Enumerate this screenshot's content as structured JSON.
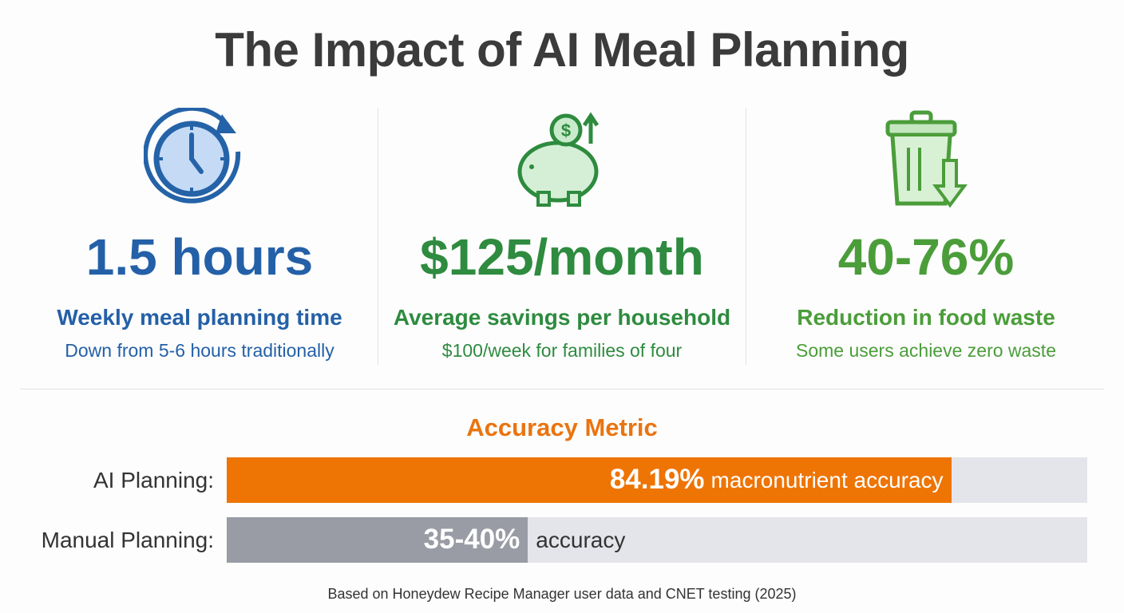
{
  "title": "The Impact of AI Meal Planning",
  "stats": [
    {
      "icon": "clock-refresh-icon",
      "value": "1.5 hours",
      "label": "Weekly meal planning time",
      "detail": "Down from 5-6 hours traditionally",
      "color": "#2460a7"
    },
    {
      "icon": "piggy-bank-icon",
      "value": "$125/month",
      "label": "Average savings per household",
      "detail": "$100/week for families of four",
      "color": "#2e8b3f"
    },
    {
      "icon": "trash-can-down-arrow-icon",
      "value": "40-76%",
      "label": "Reduction in food waste",
      "detail": "Some users achieve zero waste",
      "color": "#4b9d3a"
    }
  ],
  "accuracy": {
    "title": "Accuracy Metric",
    "rows": [
      {
        "label": "AI Planning:",
        "value": "84.19%",
        "text": "macronutrient accuracy",
        "percent": 84.19,
        "color": "#ee7404"
      },
      {
        "label": "Manual Planning:",
        "value": "35-40%",
        "text": "accuracy",
        "percent": 35,
        "color": "#999ca4"
      }
    ]
  },
  "footer": "Based on Honeydew Recipe Manager user data and CNET testing (2025)"
}
